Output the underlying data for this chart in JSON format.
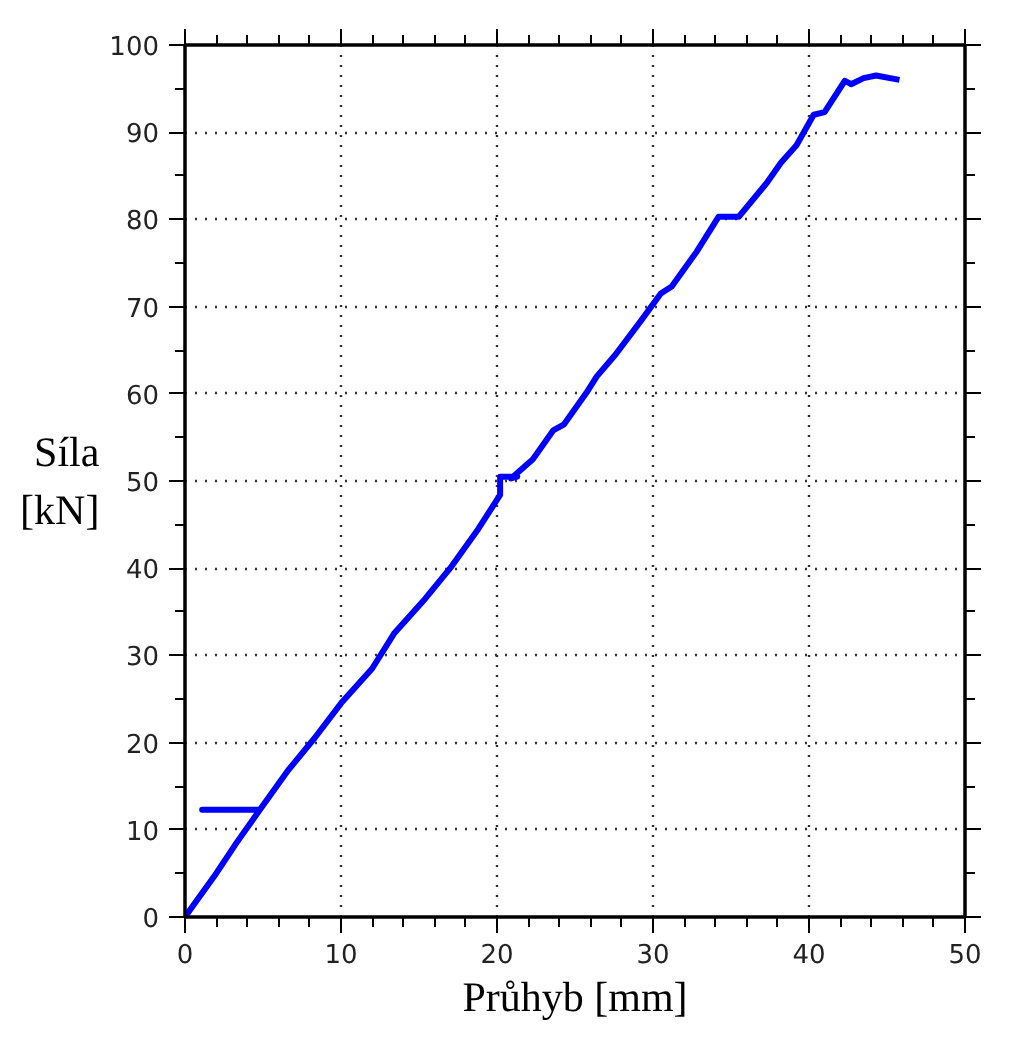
{
  "chart_data": {
    "type": "line",
    "xlabel": "Průhyb [mm]",
    "ylabel": "Síla\n[kN]",
    "x": [
      0,
      0.8,
      2,
      3.3,
      4.8,
      1.1,
      4.8,
      6.6,
      8.3,
      10,
      12,
      13.4,
      15.4,
      17,
      18.8,
      20.2,
      20.2,
      21.3,
      20.9,
      22.3,
      23.6,
      24.3,
      25.8,
      26.4,
      27.6,
      29.2,
      30.5,
      31.2,
      32.8,
      34.2,
      35.5,
      37.3,
      38.2,
      39.2,
      40.3,
      41,
      42.3,
      42.7,
      43.5,
      44.3,
      45.8
    ],
    "series": [
      {
        "color": "#0000ff",
        "values": [
          0,
          2,
          5,
          8.5,
          12.3,
          12.3,
          12.3,
          16.8,
          20.5,
          24.5,
          28.5,
          32.5,
          36.5,
          40,
          44.5,
          48.4,
          50.5,
          50.5,
          50.3,
          52.5,
          55.8,
          56.5,
          60.3,
          62,
          64.5,
          68.3,
          71.5,
          72.3,
          76.3,
          80.3,
          80.3,
          84.2,
          86.5,
          88.5,
          92,
          92.3,
          95.9,
          95.5,
          96.2,
          96.5,
          96.0
        ]
      }
    ],
    "xlim": [
      0,
      50
    ],
    "ylim": [
      0,
      100
    ],
    "xticks": [
      0,
      10,
      20,
      30,
      40,
      50
    ],
    "yticks": [
      0,
      10,
      20,
      30,
      40,
      50,
      60,
      70,
      80,
      90,
      100
    ],
    "grid": true,
    "marker": "none",
    "line_style": "solid"
  }
}
